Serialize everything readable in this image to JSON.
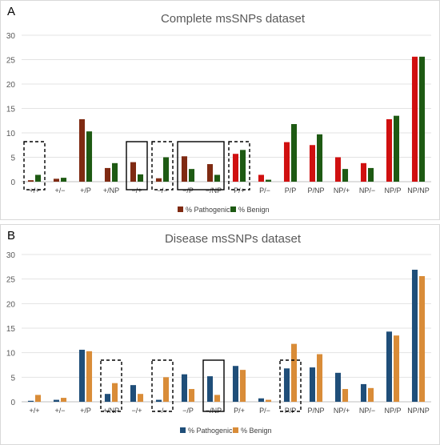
{
  "chart_data": [
    {
      "panel_label": "A",
      "type": "bar",
      "title": "Complete msSNPs dataset",
      "categories": [
        "+/+",
        "+/−",
        "+/P",
        "+/NP",
        "−/+",
        "−/−",
        "−/P",
        "−/NP",
        "P/+",
        "P/−",
        "P/P",
        "P/NP",
        "NP/+",
        "NP/−",
        "NP/P",
        "NP/NP"
      ],
      "series": [
        {
          "name": "% Pathogenic",
          "values": [
            0.3,
            0.6,
            12.8,
            2.8,
            4.0,
            0.7,
            5.2,
            3.6,
            5.7,
            1.4,
            8.1,
            7.5,
            5.0,
            3.8,
            12.8,
            25.6
          ]
        },
        {
          "name": "% Benign",
          "values": [
            1.4,
            0.8,
            10.3,
            3.8,
            1.5,
            5.0,
            2.6,
            1.4,
            6.5,
            0.4,
            11.8,
            9.7,
            2.6,
            2.8,
            13.5,
            25.6
          ]
        }
      ],
      "ylim": [
        0,
        30
      ],
      "yticks": [
        "0",
        "5",
        "10",
        "15",
        "20",
        "25",
        "30"
      ],
      "legend": "bottom",
      "colors": {
        "pathogenic_main": "#7f2a12",
        "pathogenic_alt": "#d01010",
        "benign": "#1e5a13"
      },
      "highlight": {
        "dashed": [
          "+/+",
          "−/−",
          "P/+"
        ],
        "solid": [
          [
            "−/+"
          ],
          [
            "−/P",
            "−/NP"
          ]
        ]
      }
    },
    {
      "panel_label": "B",
      "type": "bar",
      "title": "Disease msSNPs dataset",
      "categories": [
        "+/+",
        "+/−",
        "+/P",
        "+/NP",
        "−/+",
        "−/−",
        "−/P",
        "−/NP",
        "P/+",
        "P/−",
        "P/P",
        "P/NP",
        "NP/+",
        "NP/−",
        "NP/P",
        "NP/NP"
      ],
      "series": [
        {
          "name": "% Pathogenic",
          "values": [
            0.2,
            0.4,
            10.6,
            1.6,
            3.4,
            0.4,
            5.6,
            5.2,
            7.3,
            0.7,
            6.8,
            7.0,
            5.9,
            3.6,
            14.3,
            26.9
          ]
        },
        {
          "name": "% Benign",
          "values": [
            1.4,
            0.8,
            10.3,
            3.8,
            1.6,
            5.0,
            2.6,
            1.4,
            6.5,
            0.4,
            11.8,
            9.7,
            2.6,
            2.8,
            13.5,
            25.6
          ]
        }
      ],
      "ylim": [
        0,
        30
      ],
      "yticks": [
        "0",
        "5",
        "10",
        "15",
        "20",
        "25",
        "30"
      ],
      "legend": "bottom",
      "colors": {
        "pathogenic": "#1f4e79",
        "benign": "#d98c38"
      },
      "highlight": {
        "dashed": [
          "+/NP",
          "−/−",
          "P/P"
        ],
        "solid": [
          [
            "−/NP"
          ]
        ]
      }
    }
  ]
}
